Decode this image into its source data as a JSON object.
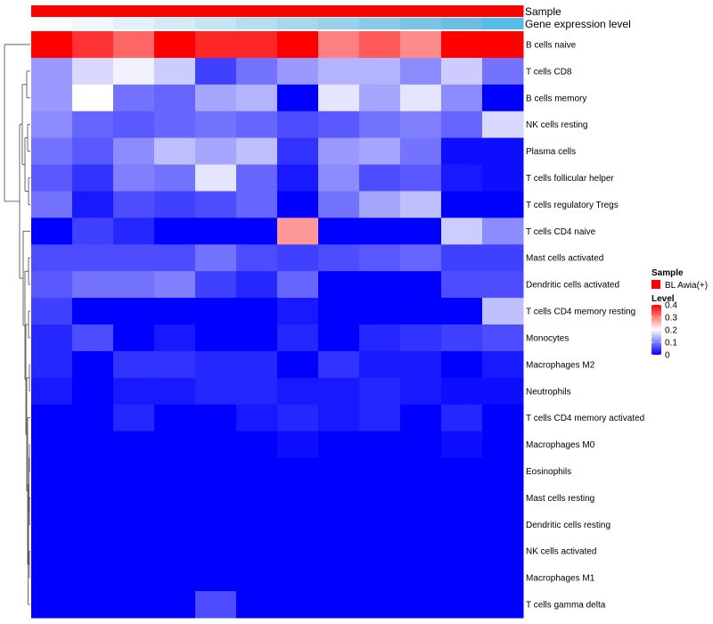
{
  "chart_data": {
    "type": "heatmap",
    "rows": [
      "B cells naive",
      "T cells CD8",
      "B cells memory",
      "NK cells resting",
      "Plasma cells",
      "T cells follicular helper",
      "T cells regulatory  Tregs",
      "T cells CD4 naive",
      "Mast cells activated",
      "Dendritic cells activated",
      "T cells CD4 memory resting",
      "Monocytes",
      "Macrophages M2",
      "Neutrophils",
      "T cells CD4 memory activated",
      "Macrophages M0",
      "Eosinophils",
      "Mast cells resting",
      "Dendritic cells resting",
      "NK cells activated",
      "Macrophages M1",
      "T cells gamma delta"
    ],
    "values": [
      [
        0.4,
        0.36,
        0.32,
        0.4,
        0.37,
        0.37,
        0.4,
        0.3,
        0.33,
        0.29,
        0.4,
        0.4
      ],
      [
        0.12,
        0.17,
        0.19,
        0.16,
        0.05,
        0.09,
        0.12,
        0.14,
        0.14,
        0.11,
        0.16,
        0.09
      ],
      [
        0.12,
        0.2,
        0.09,
        0.08,
        0.13,
        0.14,
        0.0,
        0.18,
        0.13,
        0.18,
        0.11,
        0.0
      ],
      [
        0.11,
        0.08,
        0.07,
        0.08,
        0.09,
        0.08,
        0.06,
        0.07,
        0.09,
        0.1,
        0.08,
        0.17
      ],
      [
        0.09,
        0.07,
        0.11,
        0.15,
        0.13,
        0.15,
        0.04,
        0.12,
        0.13,
        0.09,
        0.01,
        0.01
      ],
      [
        0.07,
        0.04,
        0.1,
        0.09,
        0.18,
        0.08,
        0.02,
        0.11,
        0.06,
        0.07,
        0.02,
        0.01
      ],
      [
        0.09,
        0.02,
        0.06,
        0.05,
        0.06,
        0.08,
        0.0,
        0.09,
        0.13,
        0.15,
        0.0,
        0.0
      ],
      [
        0.0,
        0.05,
        0.03,
        0.0,
        0.0,
        0.0,
        0.28,
        0.0,
        0.0,
        0.0,
        0.16,
        0.11
      ],
      [
        0.06,
        0.06,
        0.06,
        0.06,
        0.09,
        0.06,
        0.05,
        0.06,
        0.07,
        0.08,
        0.05,
        0.05
      ],
      [
        0.07,
        0.09,
        0.09,
        0.1,
        0.05,
        0.03,
        0.08,
        0.0,
        0.0,
        0.0,
        0.06,
        0.06
      ],
      [
        0.05,
        0.0,
        0.0,
        0.0,
        0.0,
        0.0,
        0.02,
        0.0,
        0.0,
        0.0,
        0.0,
        0.15
      ],
      [
        0.03,
        0.06,
        0.0,
        0.02,
        0.0,
        0.0,
        0.03,
        0.0,
        0.03,
        0.04,
        0.05,
        0.06
      ],
      [
        0.03,
        0.0,
        0.04,
        0.04,
        0.03,
        0.03,
        0.0,
        0.04,
        0.02,
        0.02,
        0.0,
        0.02
      ],
      [
        0.02,
        0.0,
        0.02,
        0.02,
        0.03,
        0.03,
        0.02,
        0.02,
        0.03,
        0.02,
        0.01,
        0.01
      ],
      [
        0.0,
        0.0,
        0.03,
        0.0,
        0.0,
        0.02,
        0.03,
        0.02,
        0.03,
        0.0,
        0.03,
        0.0
      ],
      [
        0.0,
        0.0,
        0.0,
        0.0,
        0.0,
        0.0,
        0.01,
        0.0,
        0.0,
        0.0,
        0.01,
        0.0
      ],
      [
        0.0,
        0.0,
        0.0,
        0.0,
        0.0,
        0.0,
        0.0,
        0.0,
        0.0,
        0.0,
        0.0,
        0.0
      ],
      [
        0.0,
        0.0,
        0.0,
        0.0,
        0.0,
        0.0,
        0.0,
        0.0,
        0.0,
        0.0,
        0.0,
        0.0
      ],
      [
        0.0,
        0.0,
        0.0,
        0.0,
        0.0,
        0.0,
        0.0,
        0.0,
        0.0,
        0.0,
        0.0,
        0.0
      ],
      [
        0.0,
        0.0,
        0.0,
        0.0,
        0.0,
        0.0,
        0.0,
        0.0,
        0.0,
        0.0,
        0.0,
        0.0
      ],
      [
        0.0,
        0.0,
        0.0,
        0.0,
        0.0,
        0.0,
        0.0,
        0.0,
        0.0,
        0.0,
        0.0,
        0.0
      ],
      [
        0.0,
        0.0,
        0.0,
        0.0,
        0.06,
        0.0,
        0.0,
        0.0,
        0.0,
        0.0,
        0.0,
        0.0
      ]
    ],
    "annotation_tracks": [
      {
        "label": "Sample",
        "colors": [
          "#ff0000",
          "#ff0000",
          "#ff0000",
          "#ff0000",
          "#ff0000",
          "#ff0000",
          "#ff0000",
          "#ff0000",
          "#ff0000",
          "#ff0000",
          "#ff0000",
          "#ff0000"
        ]
      },
      {
        "label": "Gene expression level",
        "colors": [
          "#ffffff",
          "#f1f8fc",
          "#e2f1f9",
          "#d4ebf6",
          "#c5e5f4",
          "#b6deef",
          "#a8d7ed",
          "#99d0ea",
          "#8ac9e7",
          "#7bc3e4",
          "#6dbde1",
          "#55bde7"
        ]
      }
    ],
    "legend": {
      "sample_title": "Sample",
      "sample_entries": [
        {
          "label": "BL Awia(+)",
          "color": "#ff0000"
        }
      ],
      "level_title": "Level",
      "level_ticks": [
        "0",
        "0.1",
        "0.2",
        "0.3",
        "0.4"
      ],
      "placement": "right"
    },
    "value_range": [
      0,
      0.4
    ],
    "colorscale": {
      "low": "#0000ff",
      "mid": "#ffffff",
      "high": "#ff0000",
      "mid_value": 0.2
    },
    "dendrogram": "rows"
  }
}
